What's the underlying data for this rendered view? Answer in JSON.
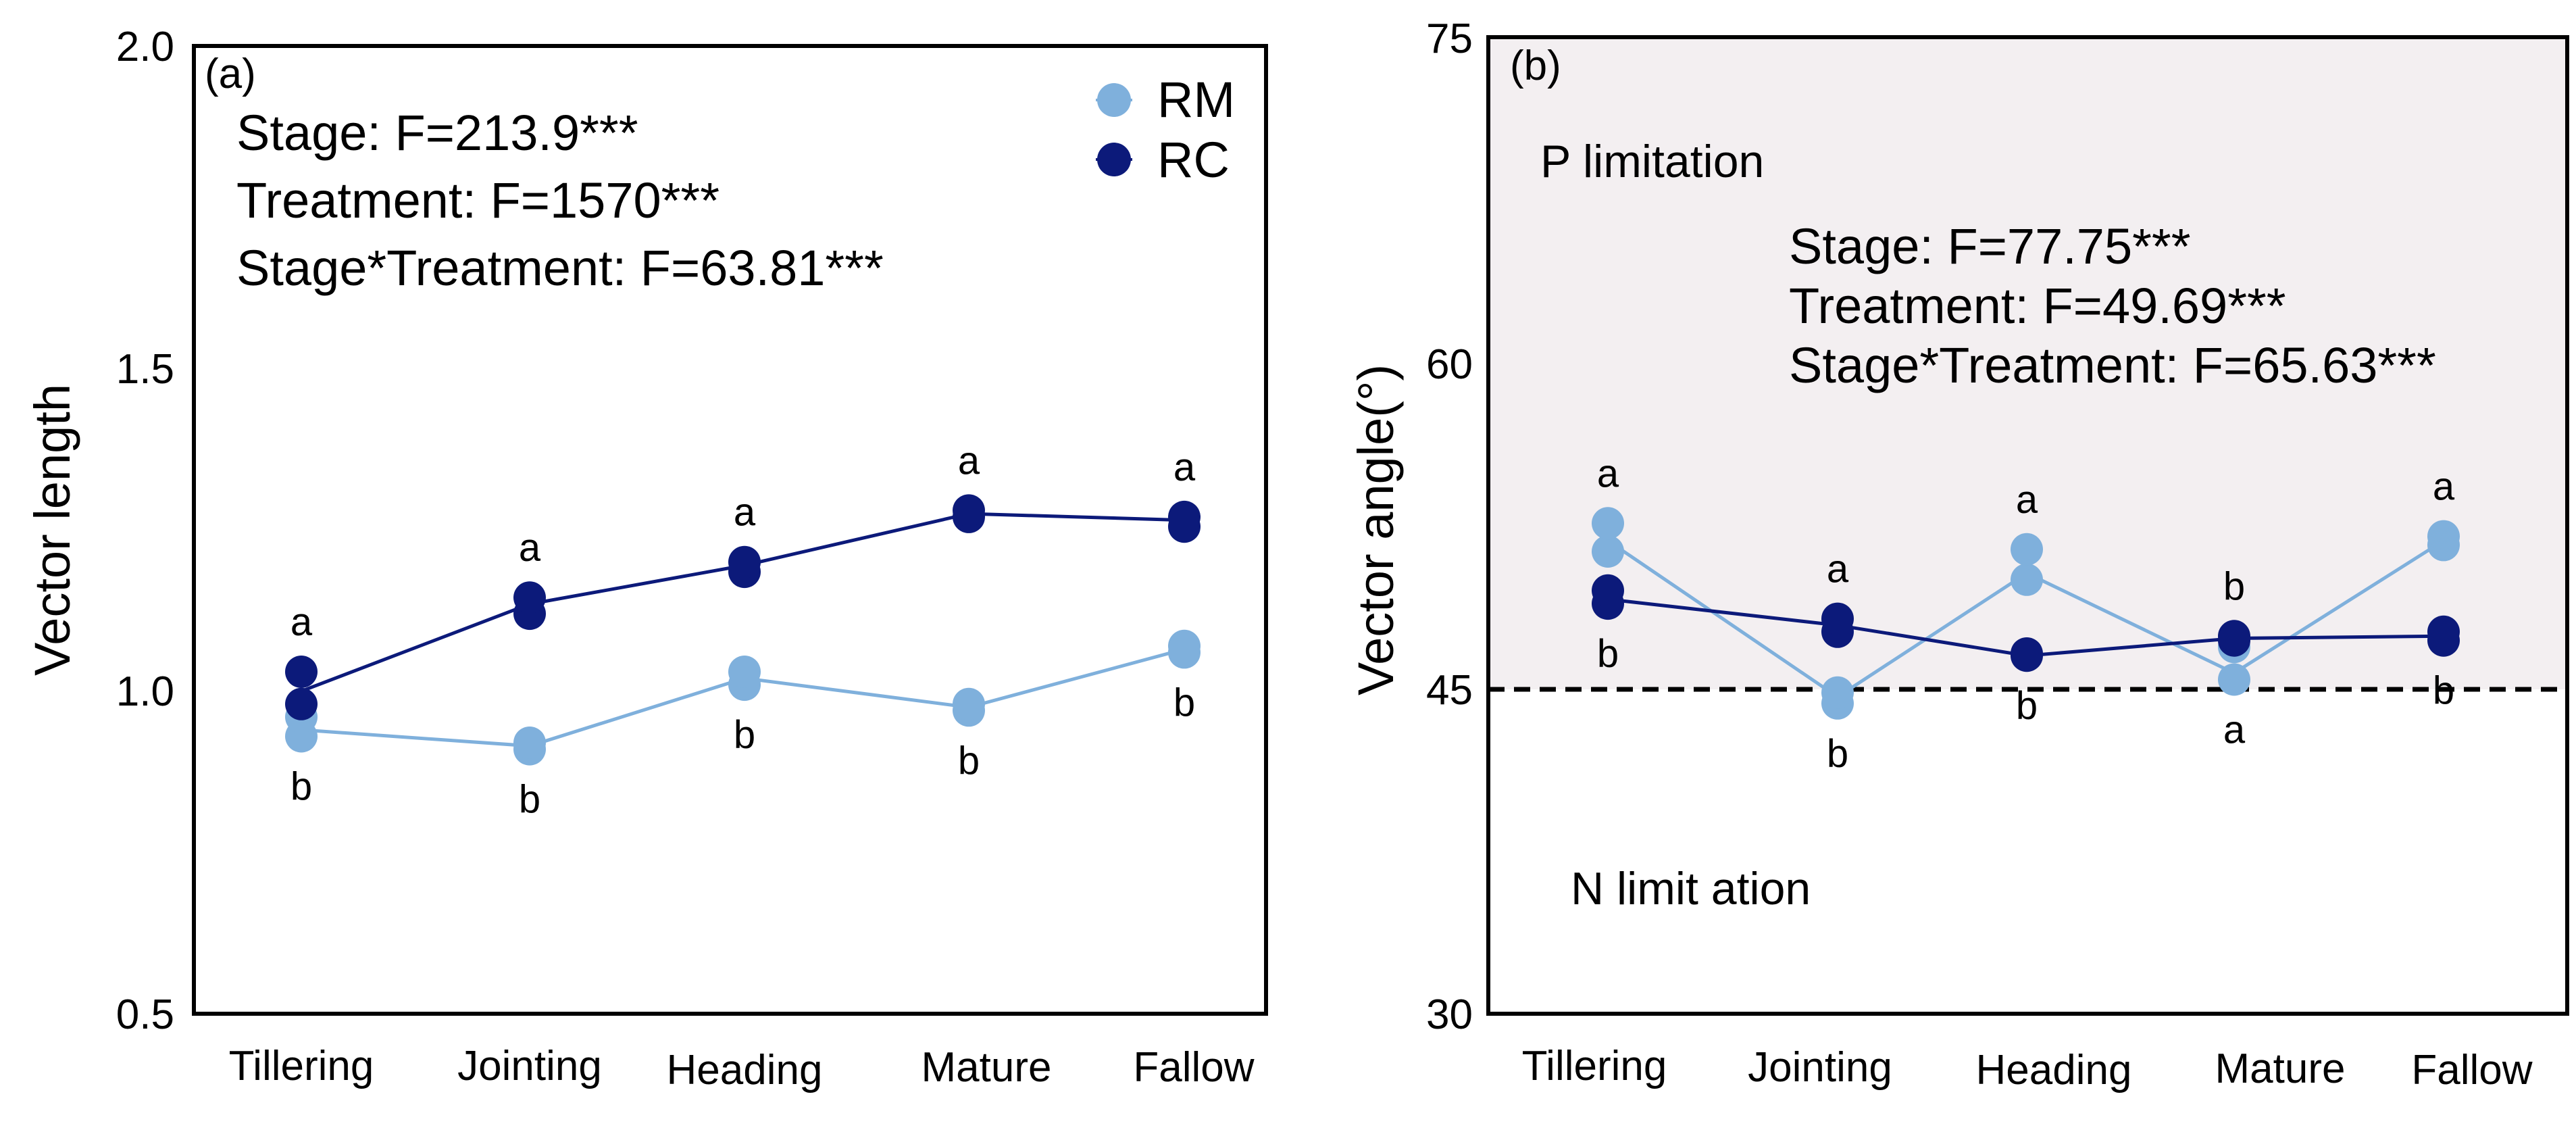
{
  "chart_data": [
    {
      "panel": "(a)",
      "type": "line",
      "categories": [
        "Tillering",
        "Jointing",
        "Heading",
        "Mature",
        "Fallow"
      ],
      "ylabel": "Vector length",
      "xlabel": "",
      "ylim": [
        0.5,
        2.0
      ],
      "yticks": [
        "0.5",
        "1.0",
        "1.5",
        "2.0"
      ],
      "series": [
        {
          "name": "RM",
          "color": "#7fb0dc",
          "values": [
            0.94,
            0.915,
            1.02,
            0.975,
            1.065
          ],
          "points": [
            [
              0.93,
              0.96
            ],
            [
              0.91,
              0.92
            ],
            [
              1.01,
              1.03
            ],
            [
              0.97,
              0.98
            ],
            [
              1.06,
              1.07
            ]
          ],
          "letters": [
            "b",
            "b",
            "b",
            "b",
            "b"
          ]
        },
        {
          "name": "RC",
          "color": "#0c1a7a",
          "values": [
            1.0,
            1.135,
            1.195,
            1.275,
            1.265
          ],
          "points": [
            [
              0.98,
              1.03
            ],
            [
              1.12,
              1.145
            ],
            [
              1.185,
              1.2
            ],
            [
              1.27,
              1.28
            ],
            [
              1.255,
              1.27
            ]
          ],
          "letters": [
            "a",
            "a",
            "a",
            "a",
            "a"
          ]
        }
      ],
      "annotations": [
        "Stage: F=213.9***",
        "Treatment: F=1570***",
        "Stage*Treatment: F=63.81***"
      ],
      "legend": {
        "position": "top-right",
        "entries": [
          "RM",
          "RC"
        ]
      }
    },
    {
      "panel": "(b)",
      "type": "line",
      "categories": [
        "Tillering",
        "Jointing",
        "Heading",
        "Mature",
        "Fallow"
      ],
      "ylabel": "Vector angle(°)",
      "xlabel": "",
      "ylim": [
        30,
        75
      ],
      "yticks": [
        "30",
        "45",
        "60",
        "75"
      ],
      "reference_line": 45,
      "series": [
        {
          "name": "RM",
          "color": "#7fb0dc",
          "values": [
            51.8,
            44.6,
            50.3,
            45.7,
            51.8
          ],
          "points": [
            [
              51.3,
              52.6
            ],
            [
              44.3,
              44.8
            ],
            [
              50.0,
              51.4
            ],
            [
              45.4,
              46.9
            ],
            [
              51.6,
              52.0
            ]
          ],
          "letters": [
            "a",
            "b",
            "a",
            "a",
            "a"
          ]
        },
        {
          "name": "RC",
          "color": "#0c1a7a",
          "values": [
            49.1,
            47.9,
            46.5,
            47.3,
            47.4
          ],
          "points": [
            [
              48.9,
              49.5
            ],
            [
              47.6,
              48.2
            ],
            [
              46.5,
              46.6
            ],
            [
              47.2,
              47.4
            ],
            [
              47.2,
              47.6
            ]
          ],
          "letters": [
            "b",
            "a",
            "b",
            "b",
            "b"
          ]
        }
      ],
      "region_labels": {
        "upper": "P limitation",
        "lower": "N limit ation"
      },
      "region_upper_color": "#f3eff1",
      "annotations": [
        "Stage: F=77.75***",
        "Treatment: F=49.69***",
        "Stage*Treatment: F=65.63***"
      ]
    }
  ]
}
